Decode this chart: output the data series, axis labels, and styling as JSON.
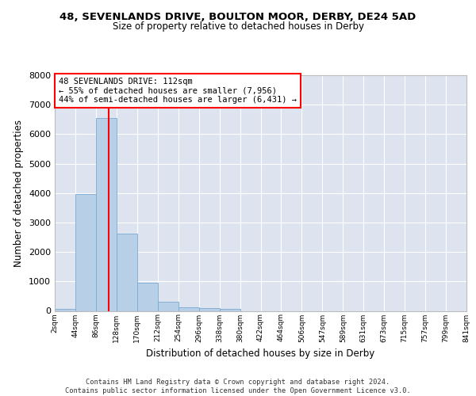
{
  "title": "48, SEVENLANDS DRIVE, BOULTON MOOR, DERBY, DE24 5AD",
  "subtitle": "Size of property relative to detached houses in Derby",
  "xlabel": "Distribution of detached houses by size in Derby",
  "ylabel": "Number of detached properties",
  "bar_values": [
    75,
    3975,
    6550,
    2625,
    950,
    300,
    125,
    100,
    75,
    0,
    0,
    0,
    0,
    0,
    0,
    0,
    0,
    0,
    0,
    0
  ],
  "bin_labels": [
    "2sqm",
    "44sqm",
    "86sqm",
    "128sqm",
    "170sqm",
    "212sqm",
    "254sqm",
    "296sqm",
    "338sqm",
    "380sqm",
    "422sqm",
    "464sqm",
    "506sqm",
    "547sqm",
    "589sqm",
    "631sqm",
    "673sqm",
    "715sqm",
    "757sqm",
    "799sqm",
    "841sqm"
  ],
  "bar_color": "#b8cfe8",
  "bar_edge_color": "#7aaad0",
  "bg_color": "#dde4f0",
  "grid_color": "white",
  "annotation_text": "48 SEVENLANDS DRIVE: 112sqm\n← 55% of detached houses are smaller (7,956)\n44% of semi-detached houses are larger (6,431) →",
  "annotation_box_color": "white",
  "annotation_box_edge_color": "red",
  "vline_color": "red",
  "vline_x": 2.619,
  "ylim": [
    0,
    8000
  ],
  "yticks": [
    0,
    1000,
    2000,
    3000,
    4000,
    5000,
    6000,
    7000,
    8000
  ],
  "footer": "Contains HM Land Registry data © Crown copyright and database right 2024.\nContains public sector information licensed under the Open Government Licence v3.0."
}
